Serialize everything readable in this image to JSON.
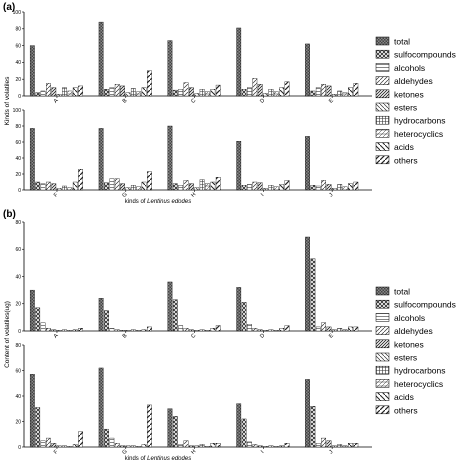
{
  "chart_data": [
    {
      "panel": "(a)",
      "type": "bar",
      "ylabel": "Kinds of volatiles",
      "xlabel": "kinds of Lentinus edodes",
      "xlabel_prefix": "kinds of ",
      "xlabel_italic": "Lentinus edodes",
      "series_names": [
        "total",
        "sulfocompounds",
        "alcohols",
        "aldehydes",
        "ketones",
        "esters",
        "hydrocarbons",
        "heterocyclics",
        "acids",
        "others"
      ],
      "subplots": [
        {
          "ylim": [
            0,
            100
          ],
          "yticks": [
            0,
            20,
            40,
            60,
            80,
            100
          ],
          "categories": [
            "A",
            "B",
            "C",
            "D",
            "E"
          ],
          "values": [
            [
              60,
              4,
              6,
              15,
              10,
              2,
              10,
              6,
              10,
              12
            ],
            [
              88,
              8,
              10,
              14,
              12,
              4,
              9,
              5,
              10,
              30
            ],
            [
              66,
              7,
              8,
              16,
              10,
              3,
              8,
              5,
              8,
              13
            ],
            [
              81,
              8,
              10,
              21,
              14,
              3,
              8,
              5,
              10,
              17
            ],
            [
              62,
              6,
              10,
              14,
              12,
              2,
              6,
              4,
              10,
              15
            ]
          ]
        },
        {
          "ylim": [
            0,
            100
          ],
          "yticks": [
            0,
            20,
            40,
            60,
            80,
            100
          ],
          "categories": [
            "F",
            "G",
            "H",
            "I",
            "J"
          ],
          "values": [
            [
              77,
              10,
              8,
              10,
              8,
              2,
              5,
              3,
              10,
              26
            ],
            [
              77,
              9,
              14,
              14,
              8,
              3,
              6,
              4,
              10,
              23
            ],
            [
              80,
              8,
              6,
              12,
              8,
              3,
              13,
              8,
              10,
              16
            ],
            [
              61,
              6,
              7,
              10,
              9,
              2,
              6,
              4,
              7,
              12
            ],
            [
              67,
              6,
              5,
              12,
              7,
              2,
              7,
              4,
              8,
              10
            ]
          ]
        }
      ]
    },
    {
      "panel": "(b)",
      "type": "bar",
      "ylabel": "Content of volatiles(ug)",
      "xlabel": "kinds of Lentinus edodes",
      "xlabel_prefix": "kinds of ",
      "xlabel_italic": "Lentinus edodes",
      "series_names": [
        "total",
        "sulfocompounds",
        "alcohols",
        "aldehydes",
        "ketones",
        "esters",
        "hydrocarbons",
        "heterocyclics",
        "acids",
        "others"
      ],
      "subplots": [
        {
          "ylim": [
            0,
            80
          ],
          "yticks": [
            0,
            20,
            40,
            60,
            80
          ],
          "categories": [
            "A",
            "B",
            "C",
            "D",
            "E"
          ],
          "values": [
            [
              30,
              17,
              6,
              2,
              1,
              0.5,
              1,
              0.5,
              1,
              2
            ],
            [
              24,
              15,
              2,
              1,
              0.5,
              0.5,
              1,
              0.5,
              1,
              3
            ],
            [
              36,
              23,
              4,
              2,
              1,
              0.5,
              1,
              0.5,
              2,
              4
            ],
            [
              32,
              21,
              5,
              2,
              1,
              0.5,
              1,
              0.5,
              2,
              4
            ],
            [
              69,
              53,
              3,
              6,
              3,
              1,
              2,
              1,
              3,
              3
            ]
          ]
        },
        {
          "ylim": [
            0,
            80
          ],
          "yticks": [
            0,
            20,
            40,
            60,
            80
          ],
          "categories": [
            "F",
            "G",
            "H",
            "I",
            "J"
          ],
          "values": [
            [
              57,
              31,
              5,
              7,
              3,
              1,
              1,
              0.5,
              2,
              12
            ],
            [
              62,
              14,
              7,
              3,
              1,
              1,
              1,
              0.5,
              2,
              33
            ],
            [
              30,
              24,
              2,
              5,
              1,
              1,
              2,
              0.5,
              3,
              3
            ],
            [
              34,
              22,
              4,
              2,
              1,
              0.5,
              1,
              0.5,
              1,
              3
            ],
            [
              53,
              32,
              3,
              7,
              5,
              1,
              2,
              1,
              3,
              3
            ]
          ]
        }
      ]
    }
  ],
  "legend": {
    "position": "right",
    "items": [
      "total",
      "sulfocompounds",
      "alcohols",
      "aldehydes",
      "ketones",
      "esters",
      "hydrocarbons",
      "heterocyclics",
      "acids",
      "others"
    ]
  }
}
